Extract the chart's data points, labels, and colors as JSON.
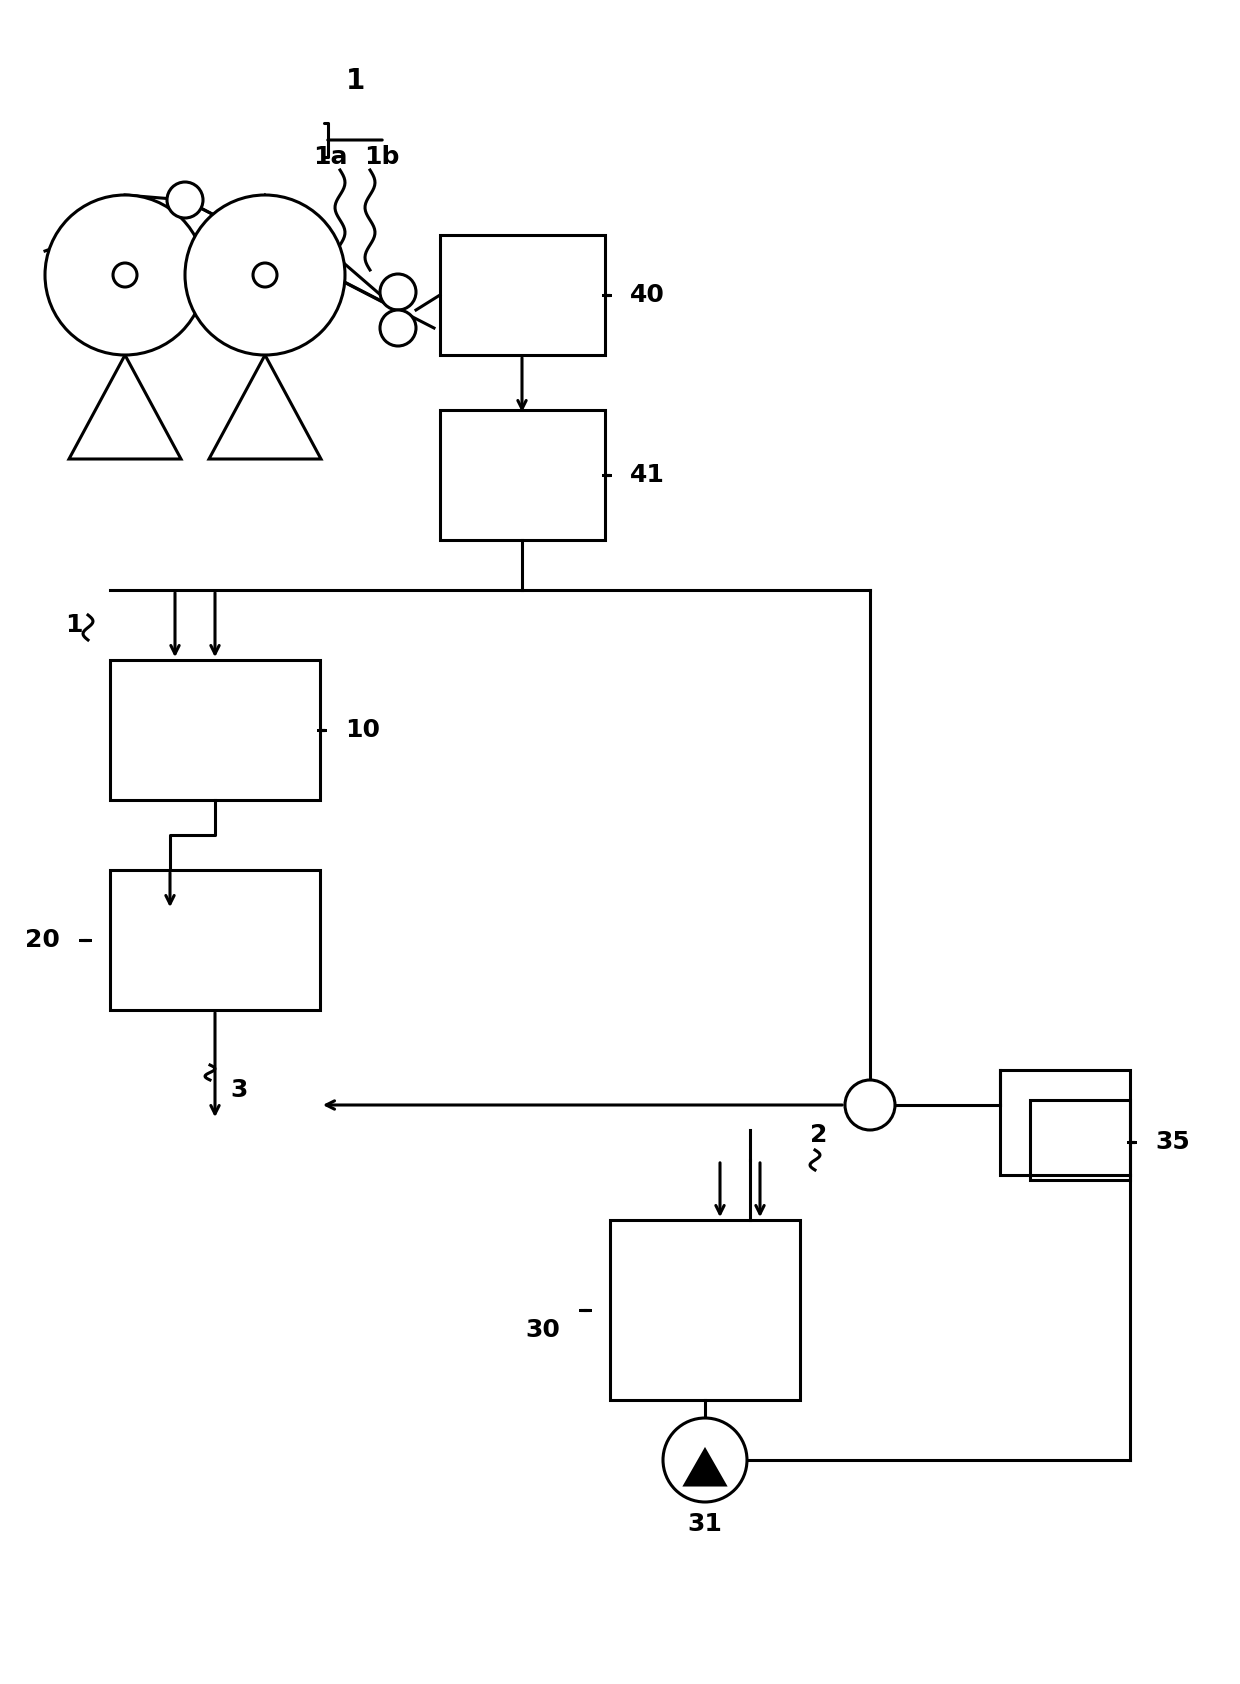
{
  "bg_color": "#ffffff",
  "line_color": "#000000",
  "lw": 2.2,
  "fig_width": 12.4,
  "fig_height": 16.84,
  "dpi": 100
}
